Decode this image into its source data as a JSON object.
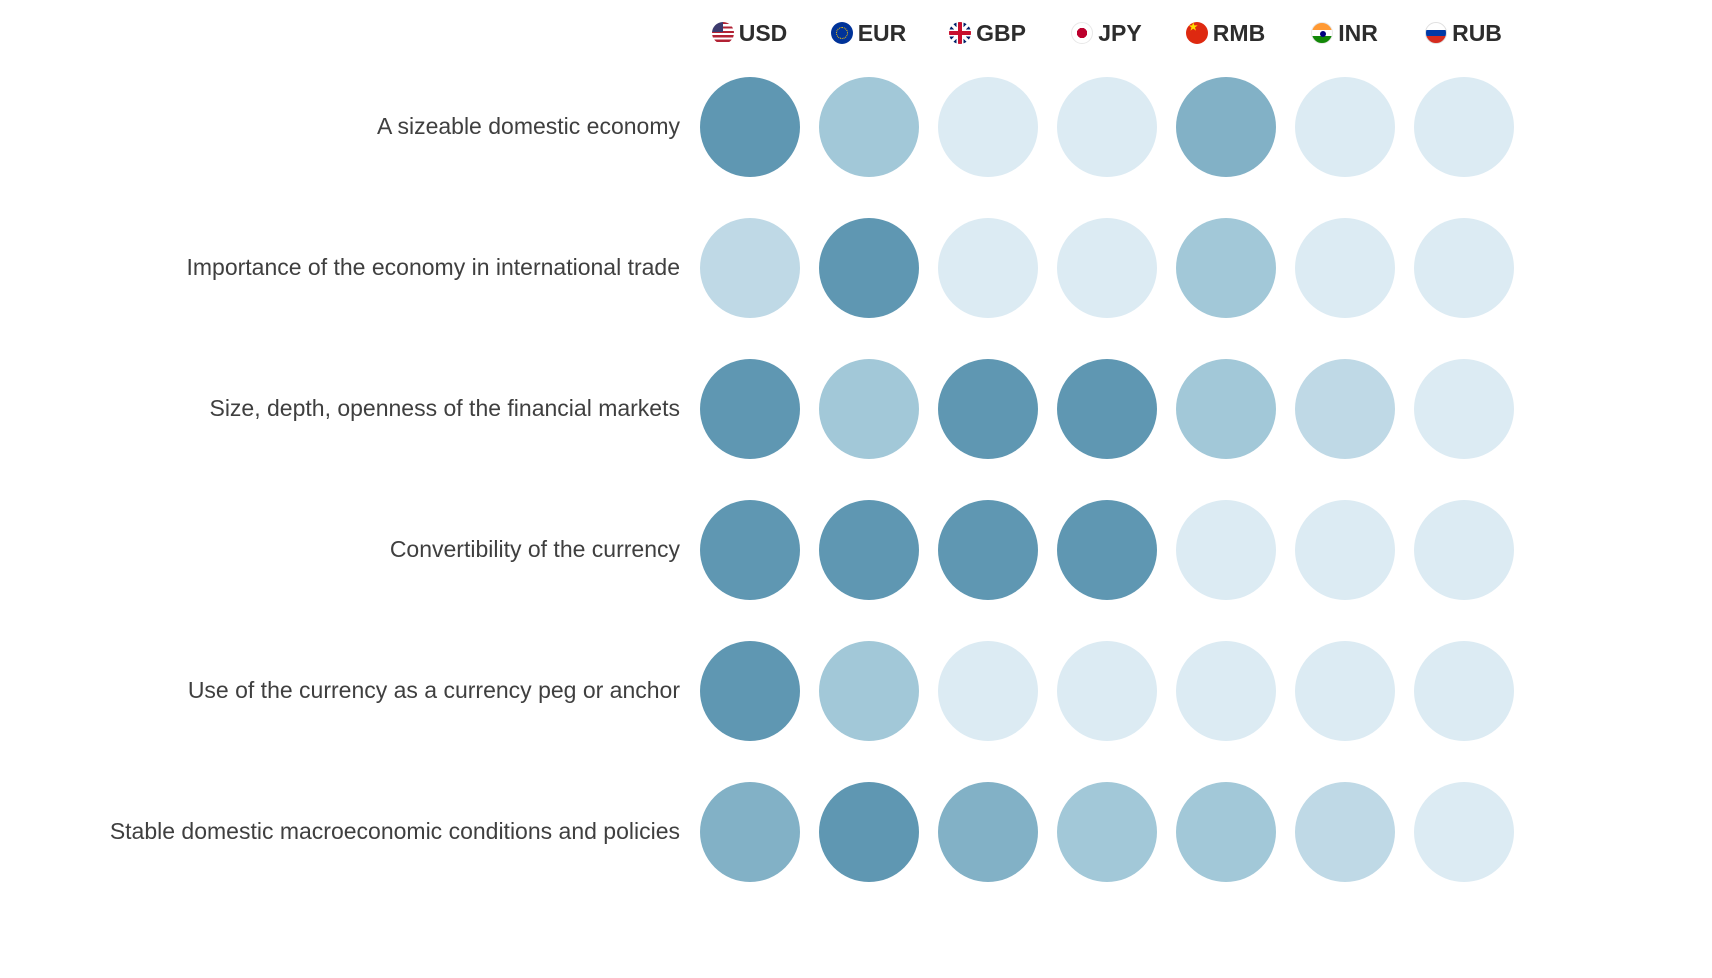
{
  "chart_data": {
    "type": "heatmap",
    "title": "",
    "columns": [
      {
        "code": "USD",
        "flag": "usd-flag-icon"
      },
      {
        "code": "EUR",
        "flag": "eur-flag-icon"
      },
      {
        "code": "GBP",
        "flag": "gbp-flag-icon"
      },
      {
        "code": "JPY",
        "flag": "jpy-flag-icon"
      },
      {
        "code": "RMB",
        "flag": "rmb-flag-icon"
      },
      {
        "code": "INR",
        "flag": "inr-flag-icon"
      },
      {
        "code": "RUB",
        "flag": "rub-flag-icon"
      }
    ],
    "rows": [
      "A sizeable domestic economy",
      "Importance of the economy in international trade",
      "Size, depth, openness of the financial markets",
      "Convertibility of the currency",
      "Use of the currency as a currency peg or anchor",
      "Stable domestic macroeconomic conditions and policies"
    ],
    "values": [
      [
        5,
        3,
        1,
        1,
        4,
        1,
        1
      ],
      [
        2,
        5,
        1,
        1,
        3,
        1,
        1
      ],
      [
        5,
        3,
        5,
        5,
        3,
        2,
        1
      ],
      [
        5,
        5,
        5,
        5,
        1,
        1,
        1
      ],
      [
        5,
        3,
        1,
        1,
        1,
        1,
        1
      ],
      [
        4,
        5,
        4,
        3,
        3,
        2,
        1
      ]
    ],
    "value_scale_note": "1 = weakest (lightest blue), 5 = strongest (darkest blue)",
    "color_scale": {
      "1": "#dcebf3",
      "2": "#bfd9e6",
      "3": "#a2c8d8",
      "4": "#82b1c6",
      "5": "#5f97b2"
    },
    "legend": "none",
    "grid": false
  }
}
